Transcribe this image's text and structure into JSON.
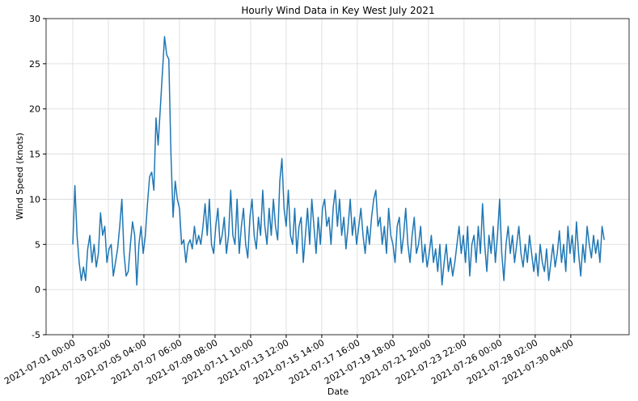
{
  "chart_data": {
    "type": "line",
    "title": "Hourly Wind Data in Key West July 2021",
    "xlabel": "Date",
    "ylabel": "Wind Speed (knots)",
    "x": [
      0,
      3,
      6,
      9,
      12,
      15,
      18,
      21,
      24,
      27,
      30,
      33,
      36,
      39,
      42,
      45,
      48,
      51,
      54,
      57,
      60,
      63,
      66,
      69,
      72,
      75,
      78,
      81,
      84,
      87,
      90,
      93,
      96,
      99,
      102,
      105,
      108,
      111,
      114,
      117,
      120,
      123,
      126,
      129,
      132,
      135,
      138,
      141,
      144,
      147,
      150,
      153,
      156,
      159,
      162,
      165,
      168,
      171,
      174,
      177,
      180,
      183,
      186,
      189,
      192,
      195,
      198,
      201,
      204,
      207,
      210,
      213,
      216,
      219,
      222,
      225,
      228,
      231,
      234,
      237,
      240,
      243,
      246,
      249,
      252,
      255,
      258,
      261,
      264,
      267,
      270,
      273,
      276,
      279,
      282,
      285,
      288,
      291,
      294,
      297,
      300,
      303,
      306,
      309,
      312,
      315,
      318,
      321,
      324,
      327,
      330,
      333,
      336,
      339,
      342,
      345,
      348,
      351,
      354,
      357,
      360,
      363,
      366,
      369,
      372,
      375,
      378,
      381,
      384,
      387,
      390,
      393,
      396,
      399,
      402,
      405,
      408,
      411,
      414,
      417,
      420,
      423,
      426,
      429,
      432,
      435,
      438,
      441,
      444,
      447,
      450,
      453,
      456,
      459,
      462,
      465,
      468,
      471,
      474,
      477,
      480,
      483,
      486,
      489,
      492,
      495,
      498,
      501,
      504,
      507,
      510,
      513,
      516,
      519,
      522,
      525,
      528,
      531,
      534,
      537,
      540,
      543,
      546,
      549,
      552,
      555,
      558,
      561,
      564,
      567,
      570,
      573,
      576,
      579,
      582,
      585,
      588,
      591,
      594,
      597,
      600,
      603,
      606,
      609,
      612,
      615,
      618,
      621,
      624,
      627,
      630,
      633,
      636,
      639,
      642,
      645,
      648,
      651,
      654,
      657,
      660,
      663,
      666,
      669,
      672,
      675,
      678,
      681,
      684,
      687,
      690,
      693,
      696,
      699,
      702,
      705,
      708,
      711,
      714,
      717,
      720,
      723,
      726,
      729,
      732,
      735,
      738,
      741,
      744,
      747
    ],
    "series": [
      {
        "name": "Wind Speed",
        "color": "#1f77b4",
        "values": [
          5,
          11.5,
          6,
          3,
          1,
          2.5,
          1,
          4.5,
          6,
          3,
          5,
          2.5,
          4,
          8.5,
          6,
          7,
          3,
          4.5,
          5,
          1.5,
          3,
          4.5,
          7,
          10,
          4,
          1.5,
          2,
          5,
          7.5,
          6,
          0.5,
          5,
          7,
          4,
          6,
          9.5,
          12.5,
          13,
          11,
          19,
          16,
          20,
          24,
          28,
          26,
          25.5,
          15,
          8,
          12,
          10,
          9,
          5,
          5.5,
          3,
          5,
          5.5,
          4.5,
          7,
          5,
          6,
          5,
          7,
          9.5,
          6,
          10,
          5,
          4,
          7,
          9,
          5,
          6,
          8,
          4,
          6,
          11,
          6,
          5,
          10,
          4,
          7,
          9,
          5,
          3.5,
          8,
          10,
          6,
          4.5,
          8,
          6,
          11,
          7,
          5,
          9,
          6,
          10,
          7,
          5.5,
          12,
          14.5,
          9,
          7,
          11,
          6,
          5,
          9,
          4,
          7,
          8,
          3,
          6,
          9,
          5,
          10,
          7,
          4,
          8,
          5,
          9,
          10,
          7,
          8,
          5,
          9,
          11,
          7,
          10,
          6,
          8,
          4.5,
          7,
          10,
          6,
          8,
          5,
          7,
          9,
          6,
          4,
          7,
          5,
          8,
          10,
          11,
          7,
          8,
          5,
          7,
          4,
          9,
          6,
          5,
          3,
          7,
          8,
          4,
          6,
          9,
          5,
          3,
          6,
          8,
          4,
          5,
          7,
          3,
          5,
          2.5,
          4,
          6,
          3,
          4.5,
          2,
          5,
          0.5,
          3,
          5,
          2,
          3.5,
          1.5,
          3,
          5,
          7,
          4,
          6,
          3,
          7,
          1.5,
          5,
          6,
          3,
          7,
          4,
          9.5,
          5,
          2,
          6,
          4,
          7,
          3,
          6,
          10,
          4,
          1,
          5,
          7,
          4,
          6,
          3,
          5,
          7,
          4,
          2.5,
          5,
          3,
          6,
          4,
          2,
          4,
          1.5,
          5,
          3,
          2,
          4.5,
          1,
          3,
          5,
          2.5,
          4,
          6.5,
          3,
          5,
          2,
          7,
          4,
          6,
          3,
          7.5,
          4,
          1.5,
          5,
          3,
          7,
          5,
          3.5,
          6,
          4,
          5.5,
          3,
          7,
          5.5
        ]
      }
    ],
    "xlim": [
      -37.5,
      782
    ],
    "xticks": [
      {
        "value": 0,
        "label": "2021-07-01 00:00"
      },
      {
        "value": 50,
        "label": "2021-07-03 02:00"
      },
      {
        "value": 100,
        "label": "2021-07-05 04:00"
      },
      {
        "value": 150,
        "label": "2021-07-07 06:00"
      },
      {
        "value": 200,
        "label": "2021-07-09 08:00"
      },
      {
        "value": 250,
        "label": "2021-07-11 10:00"
      },
      {
        "value": 300,
        "label": "2021-07-13 12:00"
      },
      {
        "value": 350,
        "label": "2021-07-15 14:00"
      },
      {
        "value": 400,
        "label": "2021-07-17 16:00"
      },
      {
        "value": 450,
        "label": "2021-07-19 18:00"
      },
      {
        "value": 500,
        "label": "2021-07-21 20:00"
      },
      {
        "value": 550,
        "label": "2021-07-23 22:00"
      },
      {
        "value": 600,
        "label": "2021-07-26 00:00"
      },
      {
        "value": 650,
        "label": "2021-07-28 02:00"
      },
      {
        "value": 700,
        "label": "2021-07-30 04:00"
      }
    ],
    "ylim": [
      -5,
      30
    ],
    "yticks": [
      -5,
      0,
      5,
      10,
      15,
      20,
      25,
      30
    ],
    "grid": true
  }
}
